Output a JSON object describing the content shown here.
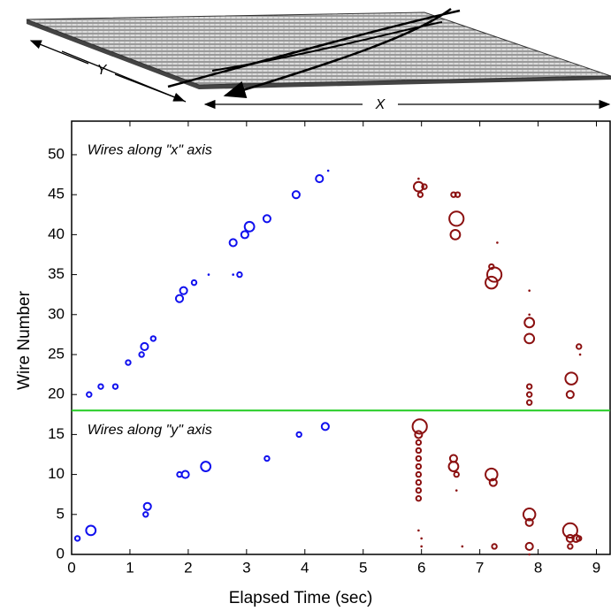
{
  "chart_data": {
    "type": "scatter",
    "xlabel": "Elapsed Time (sec)",
    "ylabel": "Wire Number",
    "xlim": [
      0,
      9.25
    ],
    "ylim": [
      0,
      54.2
    ],
    "xticks": [
      0,
      1,
      2,
      3,
      4,
      5,
      6,
      7,
      8,
      9
    ],
    "yticks": [
      0,
      5,
      10,
      15,
      20,
      25,
      30,
      35,
      40,
      45,
      50
    ],
    "divider": {
      "value": 18,
      "color": "#22cc22"
    },
    "annotations": [
      {
        "text": "Wires along \"x\" axis",
        "x": 0.27,
        "y": 50.5
      },
      {
        "text": "Wires along \"y\" axis",
        "x": 0.27,
        "y": 15.5
      }
    ],
    "diagram_labels": {
      "y_dimension": "Y",
      "x_dimension": "X"
    },
    "series": [
      {
        "color": "#1010ee",
        "x": [
          0.1,
          0.33,
          1.27,
          1.3,
          1.85,
          1.95,
          2.3,
          3.35,
          3.9,
          4.35,
          0.3,
          0.5,
          0.75,
          0.97,
          1.2,
          1.25,
          1.4,
          1.85,
          1.92,
          2.1,
          2.35,
          2.77,
          2.88,
          2.77,
          2.97,
          3.05,
          3.35,
          3.85,
          4.25,
          4.4
        ],
        "values": [
          2,
          3,
          5,
          6,
          10,
          10,
          11,
          12,
          15,
          16,
          20,
          21,
          21,
          24,
          25,
          26,
          27,
          32,
          33,
          34,
          35,
          35,
          35,
          39,
          40,
          41,
          42,
          45,
          47,
          48
        ],
        "sizes": [
          2,
          4,
          2,
          3,
          2,
          3,
          4,
          2,
          2,
          3,
          2,
          2,
          2,
          2,
          2,
          3,
          2,
          3,
          3,
          2,
          1,
          1,
          2,
          3,
          3,
          4,
          3,
          3,
          3,
          1
        ]
      },
      {
        "color": "#8b1010",
        "x": [
          5.95,
          5.95,
          6.05,
          5.98,
          6.55,
          6.62,
          6.6,
          6.58,
          7.3,
          7.2,
          7.25,
          7.2,
          7.85,
          7.85,
          7.85,
          7.85,
          7.85,
          7.85,
          7.85,
          8.57,
          8.55,
          8.7,
          8.72,
          5.97,
          5.95,
          5.95,
          5.95,
          5.95,
          5.95,
          5.95,
          5.95,
          5.95,
          5.95,
          5.95,
          6.0,
          6.0,
          6.55,
          6.55,
          6.6,
          6.6,
          6.7,
          7.2,
          7.23,
          7.25,
          7.85,
          7.85,
          7.85,
          7.85,
          8.55,
          8.55,
          8.65,
          8.55,
          8.7
        ],
        "values": [
          47,
          46,
          46,
          45,
          45,
          45,
          42,
          40,
          39,
          36,
          35,
          34,
          33,
          30,
          29,
          27,
          21,
          20,
          19,
          22,
          20,
          26,
          25,
          16,
          15,
          14,
          13,
          12,
          11,
          10,
          9,
          8,
          7,
          3,
          2,
          1,
          12,
          11,
          10,
          8,
          1,
          10,
          9,
          1,
          5,
          4,
          1,
          0,
          3,
          2,
          2,
          1,
          2
        ],
        "sizes": [
          1,
          4,
          2,
          2,
          2,
          2,
          6,
          4,
          1,
          2,
          6,
          5,
          1,
          1,
          4,
          4,
          2,
          2,
          2,
          5,
          3,
          2,
          1,
          6,
          3,
          2,
          2,
          2,
          2,
          2,
          2,
          2,
          2,
          1,
          1,
          1,
          3,
          4,
          2,
          1,
          1,
          5,
          3,
          2,
          5,
          3,
          3,
          1,
          6,
          3,
          3,
          2,
          2
        ]
      }
    ]
  }
}
